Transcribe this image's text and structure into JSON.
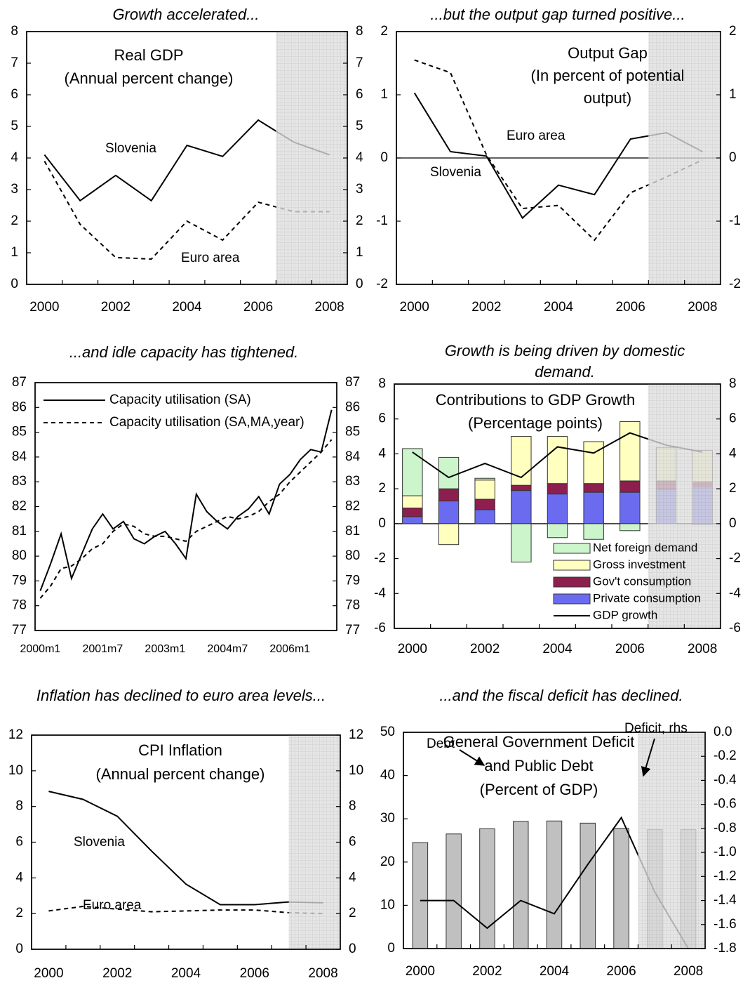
{
  "chart_data": [
    {
      "type": "line",
      "title": "Growth accelerated...",
      "inner_title": [
        "Real GDP",
        "(Annual percent change)"
      ],
      "categories": [
        "2000",
        null,
        "2002",
        null,
        "2004",
        null,
        "2006",
        null,
        "2008"
      ],
      "series": [
        {
          "name": "Slovenia",
          "color": "#000000",
          "style": "solid",
          "values": [
            4.1,
            2.65,
            3.45,
            2.65,
            4.4,
            4.05,
            5.2,
            4.5,
            4.1
          ]
        },
        {
          "name": "Euro area",
          "color": "#000000",
          "style": "dashed",
          "values": [
            3.9,
            1.9,
            0.85,
            0.8,
            2.0,
            1.4,
            2.6,
            2.3,
            2.3
          ]
        }
      ],
      "ylim": [
        0,
        8
      ],
      "yticks": [
        0,
        1,
        2,
        3,
        4,
        5,
        6,
        7,
        8
      ],
      "y2lim": [
        0,
        8
      ],
      "y2ticks": [
        0,
        1,
        2,
        3,
        4,
        5,
        6,
        7,
        8
      ]
    },
    {
      "type": "line",
      "title": "...but the output gap turned positive...",
      "inner_title": [
        "Output Gap",
        "(In percent of potential",
        "output)"
      ],
      "categories": [
        "2000",
        null,
        "2002",
        null,
        "2004",
        null,
        "2006",
        null,
        "2008"
      ],
      "series": [
        {
          "name": "Euro area",
          "color": "#000000",
          "style": "dashed",
          "values": [
            1.55,
            1.35,
            0.05,
            -0.8,
            -0.75,
            -1.3,
            -0.55,
            -0.3,
            -0.03
          ]
        },
        {
          "name": "Slovenia",
          "color": "#000000",
          "style": "solid",
          "values": [
            1.03,
            0.1,
            0.03,
            -0.95,
            -0.43,
            -0.58,
            0.3,
            0.4,
            0.1
          ]
        }
      ],
      "ylim": [
        -2,
        2
      ],
      "yticks": [
        -2,
        -1,
        0,
        1,
        2
      ],
      "y2lim": [
        -2,
        2
      ],
      "y2ticks": [
        -2,
        -1,
        0,
        1,
        2
      ]
    },
    {
      "type": "line",
      "title": "...and idle capacity has tightened.",
      "legend": "upper left",
      "categories": [
        "2000m1",
        null,
        null,
        null,
        null,
        null,
        "2001m7",
        null,
        null,
        null,
        null,
        null,
        "2003m1",
        null,
        null,
        null,
        null,
        null,
        "2004m7",
        null,
        null,
        null,
        null,
        null,
        "2006m1",
        null,
        null,
        null,
        null
      ],
      "series": [
        {
          "name": "Capacity utilisation (SA)",
          "color": "#000000",
          "style": "solid",
          "values": [
            78.6,
            79.7,
            80.9,
            79.1,
            80.1,
            81.1,
            81.7,
            81.1,
            81.4,
            80.7,
            80.5,
            80.8,
            81.0,
            80.5,
            79.9,
            82.5,
            81.8,
            81.4,
            81.1,
            81.6,
            81.9,
            82.4,
            81.7,
            82.9,
            83.3,
            83.9,
            84.3,
            84.2,
            85.9
          ]
        },
        {
          "name": "Capacity utilisation (SA,MA,year)",
          "color": "#000000",
          "style": "dashed",
          "values": [
            78.3,
            78.8,
            79.5,
            79.6,
            79.9,
            80.3,
            80.5,
            81.0,
            81.3,
            81.2,
            80.9,
            80.8,
            80.8,
            80.7,
            80.6,
            81.0,
            81.2,
            81.4,
            81.6,
            81.5,
            81.6,
            81.8,
            82.2,
            82.5,
            83.0,
            83.4,
            83.8,
            84.2,
            84.7
          ]
        }
      ],
      "ylim": [
        77,
        87
      ],
      "yticks": [
        77,
        78,
        79,
        80,
        81,
        82,
        83,
        84,
        85,
        86,
        87
      ],
      "y2lim": [
        77,
        87
      ],
      "y2ticks": [
        77,
        78,
        79,
        80,
        81,
        82,
        83,
        84,
        85,
        86,
        87
      ]
    },
    {
      "type": "bar",
      "title": "Growth is being driven by domestic demand.",
      "inner_title": [
        "Contributions to GDP Growth",
        "(Percentage points)"
      ],
      "legend": "lower right",
      "categories": [
        "2000",
        null,
        "2002",
        null,
        "2004",
        null,
        "2006",
        null,
        "2008"
      ],
      "series": [
        {
          "name": "Net foreign demand",
          "type": "bar",
          "color": "#ccf5cc",
          "values": [
            2.7,
            1.8,
            0.1,
            -2.2,
            -0.8,
            -0.9,
            -0.4,
            0,
            -0.05
          ]
        },
        {
          "name": "Gross investment",
          "type": "bar",
          "color": "#ffffc0",
          "values": [
            0.7,
            -1.2,
            1.1,
            2.8,
            2.7,
            2.4,
            3.4,
            1.9,
            1.8
          ]
        },
        {
          "name": "Gov't consumption",
          "type": "bar",
          "color": "#8c1f4d",
          "values": [
            0.5,
            0.7,
            0.6,
            0.3,
            0.6,
            0.5,
            0.65,
            0.5,
            0.3
          ]
        },
        {
          "name": "Private consumption",
          "type": "bar",
          "color": "#6b6bf0",
          "values": [
            0.4,
            1.3,
            0.8,
            1.9,
            1.7,
            1.8,
            1.8,
            1.95,
            2.1
          ]
        },
        {
          "name": "GDP growth",
          "type": "line",
          "color": "#000000",
          "style": "solid",
          "values": [
            4.1,
            2.65,
            3.45,
            2.65,
            4.4,
            4.05,
            5.2,
            4.5,
            4.1
          ]
        }
      ],
      "ylim": [
        -6,
        8
      ],
      "yticks": [
        -6,
        -4,
        -2,
        0,
        2,
        4,
        6,
        8
      ],
      "y2lim": [
        -6,
        8
      ],
      "y2ticks": [
        -6,
        -4,
        -2,
        0,
        2,
        4,
        6,
        8
      ]
    },
    {
      "type": "line",
      "title": "Inflation has declined to euro area levels...",
      "inner_title": [
        "CPI Inflation",
        "(Annual percent change)"
      ],
      "categories": [
        "2000",
        null,
        "2002",
        null,
        "2004",
        null,
        "2006",
        null,
        "2008"
      ],
      "series": [
        {
          "name": "Slovenia",
          "color": "#000000",
          "style": "solid",
          "values": [
            8.85,
            8.4,
            7.45,
            5.5,
            3.65,
            2.5,
            2.5,
            2.65,
            2.6
          ]
        },
        {
          "name": "Euro area",
          "color": "#000000",
          "style": "dashed",
          "values": [
            2.15,
            2.4,
            2.25,
            2.1,
            2.15,
            2.2,
            2.2,
            2.05,
            2.0
          ]
        }
      ],
      "ylim": [
        0,
        12
      ],
      "yticks": [
        0,
        2,
        4,
        6,
        8,
        10,
        12
      ],
      "y2lim": [
        0,
        12
      ],
      "y2ticks": [
        0,
        2,
        4,
        6,
        8,
        10,
        12
      ]
    },
    {
      "type": "bar",
      "title": "...and the fiscal deficit has declined.",
      "inner_title": [
        "General Government Deficit",
        "and Public Debt",
        "(Percent of GDP)"
      ],
      "categories": [
        "2000",
        null,
        "2002",
        null,
        "2004",
        null,
        "2006",
        null,
        "2008"
      ],
      "series": [
        {
          "name": "Debt",
          "type": "bar",
          "color": "#c0c0c0",
          "values": [
            24.5,
            26.5,
            27.7,
            29.4,
            29.5,
            29.0,
            27.8,
            27.5,
            27.5
          ]
        },
        {
          "name": "Deficit, rhs",
          "type": "line",
          "axis": "y2",
          "color": "#000000",
          "style": "solid",
          "values": [
            -1.4,
            -1.4,
            -1.63,
            -1.4,
            -1.51,
            -1.1,
            -0.71,
            -1.33,
            -1.8
          ]
        }
      ],
      "ylim": [
        0,
        50
      ],
      "yticks": [
        0,
        10,
        20,
        30,
        40,
        50
      ],
      "y2lim": [
        -1.8,
        0
      ],
      "y2ticks": [
        {
          "value": 0,
          "label": "0.0"
        },
        -0.2,
        -0.4,
        -0.6,
        -0.8,
        {
          "value": -1,
          "label": "-1.0"
        },
        -1.2,
        -1.4,
        -1.6,
        -1.8
      ]
    }
  ]
}
